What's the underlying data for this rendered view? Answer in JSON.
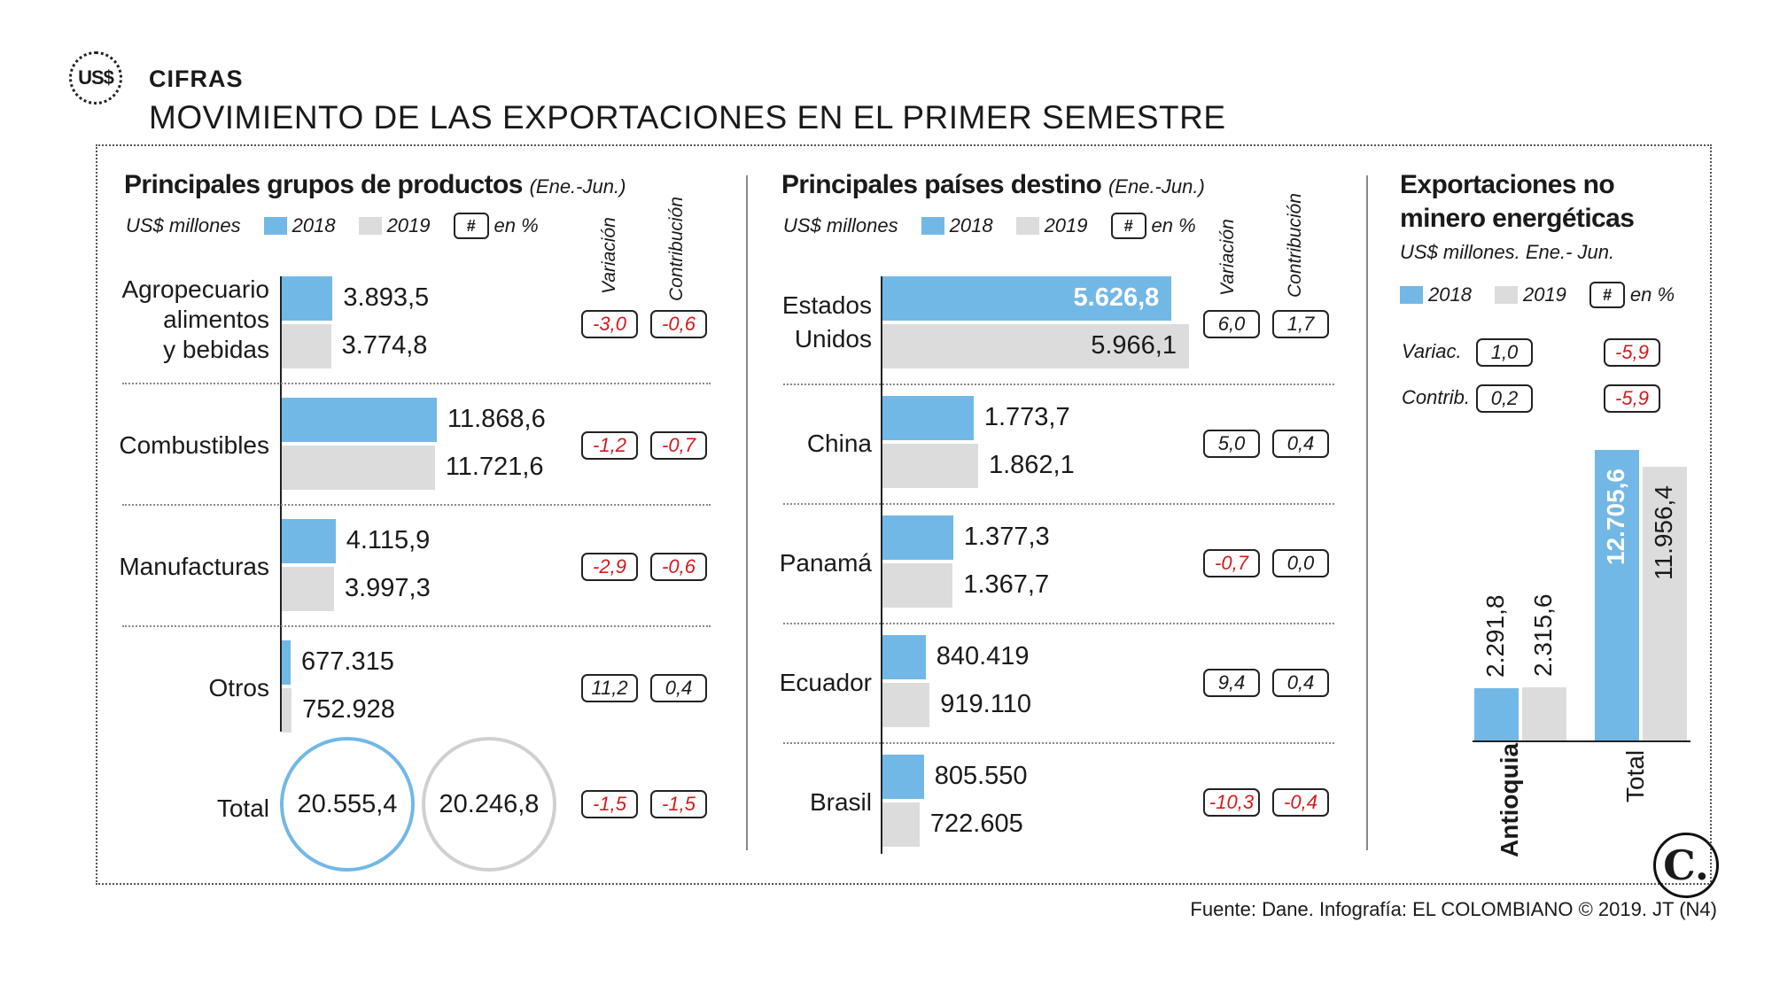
{
  "header": {
    "badge": "US$",
    "kicker": "CIFRAS",
    "title": "MOVIMIENTO DE LAS EXPORTACIONES EN EL PRIMER SEMESTRE"
  },
  "colors": {
    "y2018": "#72b8e6",
    "y2019": "#dcdcdc",
    "negative": "#d7191c"
  },
  "legend": {
    "unit": "US$ millones",
    "y2018": "2018",
    "y2019": "2019",
    "hash": "#",
    "pct": "en %"
  },
  "columns": {
    "variation": "Variación",
    "contribution": "Contribución"
  },
  "chart_data": [
    {
      "type": "bar",
      "title": "Principales grupos de productos",
      "subtitle": "(Ene.-Jun.)",
      "unit": "US$ millones",
      "series": [
        {
          "name": "2018"
        },
        {
          "name": "2019"
        }
      ],
      "rows": [
        {
          "label": "Agropecuario alimentos y bebidas",
          "v2018": 3893.5,
          "v2019": 3774.8,
          "l2018": "3.893,5",
          "l2019": "3.774,8",
          "variacion": "-3,0",
          "contribucion": "-0,6"
        },
        {
          "label": "Combustibles",
          "v2018": 11868.6,
          "v2019": 11721.6,
          "l2018": "11.868,6",
          "l2019": "11.721,6",
          "variacion": "-1,2",
          "contribucion": "-0,7"
        },
        {
          "label": "Manufacturas",
          "v2018": 4115.9,
          "v2019": 3997.3,
          "l2018": "4.115,9",
          "l2019": "3.997,3",
          "variacion": "-2,9",
          "contribucion": "-0,6"
        },
        {
          "label": "Otros",
          "v2018": 677.315,
          "v2019": 752.928,
          "l2018": "677.315",
          "l2019": "752.928",
          "variacion": "11,2",
          "contribucion": "0,4"
        }
      ],
      "total": {
        "label": "Total",
        "v2018": "20.555,4",
        "v2019": "20.246,8",
        "variacion": "-1,5",
        "contribucion": "-1,5"
      }
    },
    {
      "type": "bar",
      "title": "Principales países destino",
      "subtitle": "(Ene.-Jun.)",
      "unit": "US$ millones",
      "series": [
        {
          "name": "2018"
        },
        {
          "name": "2019"
        }
      ],
      "rows": [
        {
          "label": "Estados Unidos",
          "v2018": 5626.8,
          "v2019": 5966.1,
          "l2018": "5.626,8",
          "l2019": "5.966,1",
          "variacion": "6,0",
          "contribucion": "1,7"
        },
        {
          "label": "China",
          "v2018": 1773.7,
          "v2019": 1862.1,
          "l2018": "1.773,7",
          "l2019": "1.862,1",
          "variacion": "5,0",
          "contribucion": "0,4"
        },
        {
          "label": "Panamá",
          "v2018": 1377.3,
          "v2019": 1367.7,
          "l2018": "1.377,3",
          "l2019": "1.367,7",
          "variacion": "-0,7",
          "contribucion": "0,0"
        },
        {
          "label": "Ecuador",
          "v2018": 840.419,
          "v2019": 919.11,
          "l2018": "840.419",
          "l2019": "919.110",
          "variacion": "9,4",
          "contribucion": "0,4"
        },
        {
          "label": "Brasil",
          "v2018": 805.55,
          "v2019": 722.605,
          "l2018": "805.550",
          "l2019": "722.605",
          "variacion": "-10,3",
          "contribucion": "-0,4"
        }
      ]
    },
    {
      "type": "bar",
      "title": "Exportaciones no minero energéticas",
      "title_line1": "Exportaciones no",
      "title_line2": "minero energéticas",
      "unit": "US$ millones.  Ene.- Jun.",
      "series": [
        {
          "name": "2018"
        },
        {
          "name": "2019"
        }
      ],
      "categories": [
        "Antioquia",
        "Total"
      ],
      "v2018": [
        2291.8,
        12705.6
      ],
      "v2019": [
        2315.6,
        11956.4
      ],
      "l2018": [
        "2.291,8",
        "12.705,6"
      ],
      "l2019": [
        "2.315,6",
        "11.956,4"
      ],
      "variac_label": "Variac.",
      "contrib_label": "Contrib.",
      "variac": [
        "1,0",
        "-5,9"
      ],
      "contrib": [
        "0,2",
        "-5,9"
      ]
    }
  ],
  "footer": {
    "source": "Fuente: Dane. Infografía: EL COLOMBIANO © 2019. JT (N4)",
    "logo": "C."
  }
}
